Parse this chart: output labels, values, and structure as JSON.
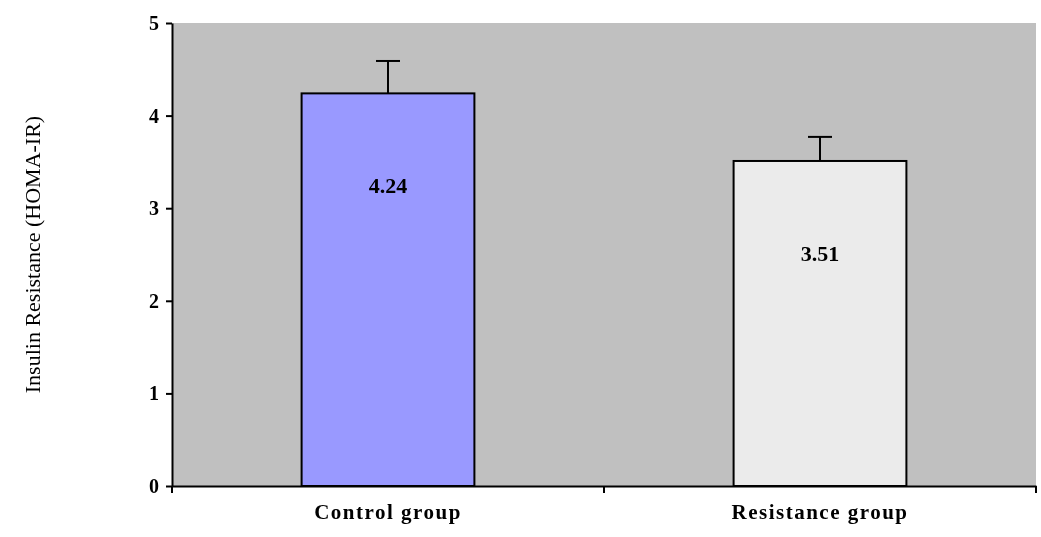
{
  "chart_data": {
    "type": "bar",
    "ylabel": "Insulin Resistance (HOMA-IR)",
    "categories": [
      "Control group",
      "Resistance group"
    ],
    "values": [
      4.24,
      3.51
    ],
    "colors": [
      "#9999ff",
      "#ebebeb"
    ],
    "errors": [
      [
        4.24,
        4.59
      ],
      [
        3.51,
        3.77
      ]
    ],
    "ylim": [
      0,
      5
    ],
    "yticks": [
      0,
      1,
      2,
      3,
      4,
      5
    ],
    "data_labels": true,
    "grid": false
  }
}
